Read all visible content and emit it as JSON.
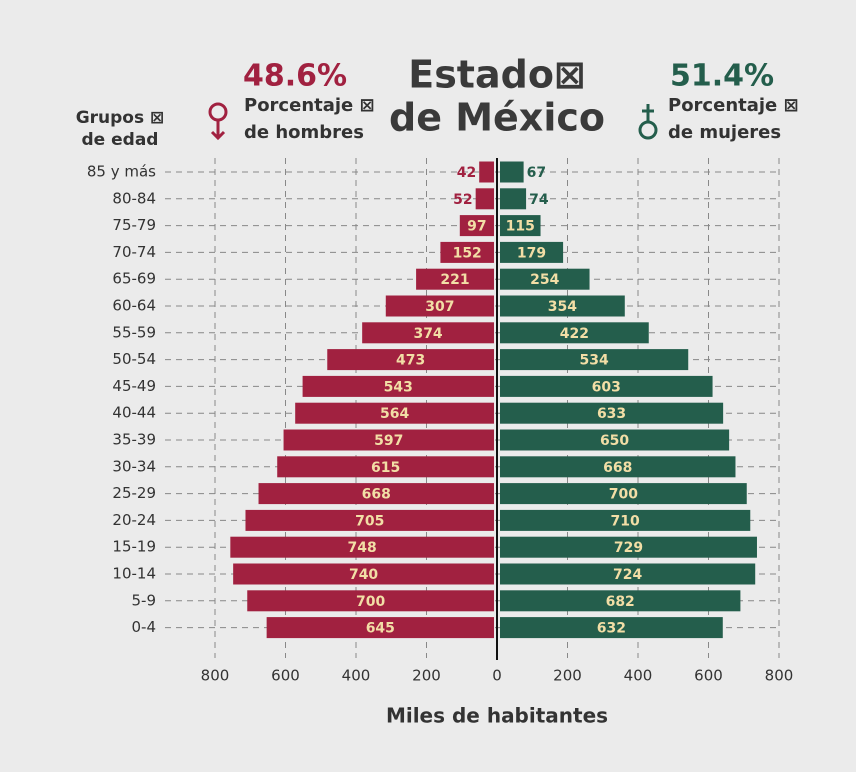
{
  "chart_data": {
    "type": "pyramid",
    "title": [
      "Estado⊠",
      "de México"
    ],
    "y_axis_label": [
      "Grupos ⊠",
      "de edad"
    ],
    "x_axis_label": "Miles de habitantes",
    "categories": [
      "85 y más",
      "80-84",
      "75-79",
      "70-74",
      "65-69",
      "60-64",
      "55-59",
      "50-54",
      "45-49",
      "40-44",
      "35-39",
      "30-34",
      "25-29",
      "20-24",
      "15-19",
      "10-14",
      "5-9",
      "0-4"
    ],
    "series": [
      {
        "name": [
          "Porcentaje ⊠",
          "de hombres"
        ],
        "share": "48.6%",
        "color": "#a12140",
        "values": [
          42,
          52,
          97,
          152,
          221,
          307,
          374,
          473,
          543,
          564,
          597,
          615,
          668,
          705,
          748,
          740,
          700,
          645
        ]
      },
      {
        "name": [
          "Porcentaje ⊠",
          "de mujeres"
        ],
        "share": "51.4%",
        "color": "#245e4c",
        "values": [
          67,
          74,
          115,
          179,
          254,
          354,
          422,
          534,
          603,
          633,
          650,
          668,
          700,
          710,
          729,
          724,
          682,
          632
        ]
      }
    ],
    "xlim": [
      -800,
      800
    ],
    "xticks": [
      {
        "value": -800,
        "label": "800"
      },
      {
        "value": -600,
        "label": "600"
      },
      {
        "value": -400,
        "label": "400"
      },
      {
        "value": -200,
        "label": "200"
      },
      0,
      200,
      400,
      600,
      800
    ],
    "grid": true
  }
}
